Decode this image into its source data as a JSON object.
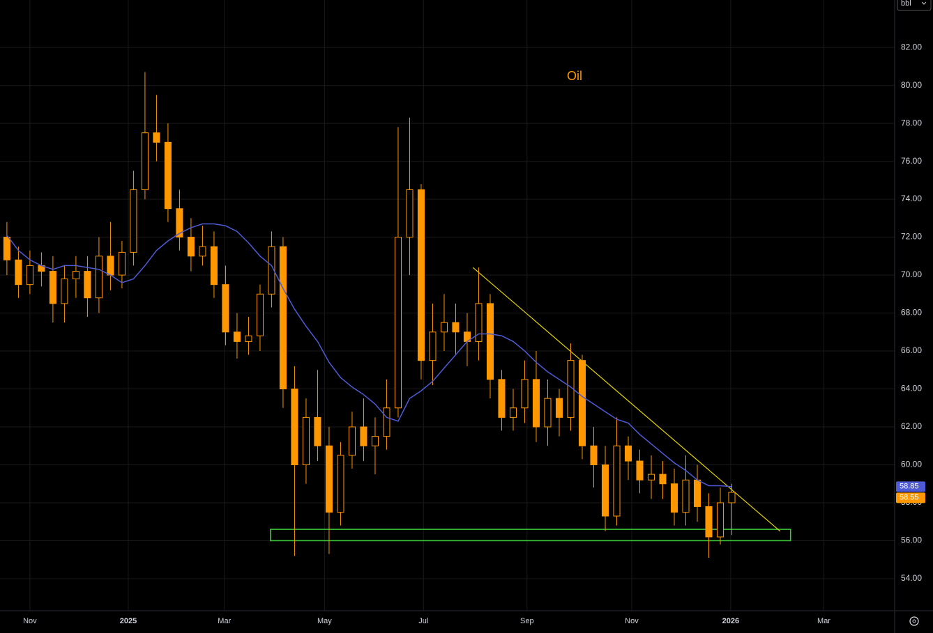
{
  "chart_data": {
    "type": "candlestick",
    "title": "Oil",
    "unit": "bbl",
    "x": [
      -2,
      -1,
      0,
      1,
      2,
      3,
      4,
      5,
      6,
      7,
      8,
      9,
      10,
      11,
      12,
      13,
      14,
      15,
      16,
      17,
      18,
      19,
      20,
      21,
      22,
      23,
      24,
      25,
      26,
      27,
      28,
      29,
      30,
      31,
      32,
      33,
      34,
      35,
      36,
      37,
      38,
      39,
      40,
      41,
      42,
      43,
      44,
      45,
      46,
      47,
      48,
      49,
      50,
      51,
      52,
      53,
      54,
      55,
      56,
      57,
      58,
      59,
      60,
      61
    ],
    "open": [
      72,
      70.8,
      69.5,
      70.5,
      70.2,
      68.5,
      69.8,
      70.2,
      68.8,
      71,
      70,
      71.2,
      74.5,
      77.5,
      77,
      73.5,
      72,
      71,
      71.5,
      69.5,
      67,
      66.5,
      66.8,
      69,
      71.5,
      64,
      60,
      62.5,
      61,
      57.5,
      60.5,
      62,
      61,
      61.5,
      63,
      72,
      74.5,
      65.5,
      67,
      67.5,
      67,
      66.5,
      68.5,
      64.5,
      62.5,
      63,
      64.5,
      62,
      63.5,
      62.5,
      65.5,
      61,
      60,
      57.3,
      61,
      60.2,
      59.2,
      59.5,
      59,
      57.5,
      59.2,
      57.8,
      56.2,
      58
    ],
    "high": [
      72.8,
      71.5,
      71.3,
      71.2,
      71,
      70.5,
      71,
      71,
      72,
      72.8,
      71.8,
      75.5,
      80.7,
      79.5,
      78,
      74.5,
      73,
      72.6,
      72.3,
      70.5,
      68,
      67.8,
      69.5,
      72.3,
      72,
      65.2,
      63.5,
      65,
      62,
      61.2,
      62.8,
      63.5,
      62.5,
      64.5,
      77.8,
      78.3,
      74.8,
      68.5,
      69,
      68.5,
      68,
      70.4,
      69,
      65,
      64,
      65.5,
      66,
      64.5,
      64,
      66.4,
      65.8,
      62,
      61,
      62.5,
      61.5,
      60.8,
      60.5,
      60.2,
      59.8,
      60.5,
      60,
      58.5,
      58.8,
      59
    ],
    "low": [
      70,
      68.8,
      69,
      69.4,
      67.5,
      67.5,
      68.8,
      67.8,
      68,
      69.2,
      69.3,
      70.5,
      74,
      76,
      72.8,
      71.3,
      70.2,
      70.5,
      68.8,
      66.3,
      65.6,
      65.8,
      66,
      68.3,
      63,
      55.2,
      59,
      60.2,
      55.3,
      56.8,
      59.8,
      60.2,
      59.5,
      60.8,
      62.5,
      70,
      64.5,
      64.2,
      66,
      65.8,
      65.2,
      65.5,
      63.5,
      61.8,
      61.8,
      62.2,
      61.2,
      61,
      61.5,
      61.8,
      60.3,
      58.8,
      56.5,
      56.8,
      59.2,
      58.5,
      58.2,
      58.2,
      56.8,
      56.8,
      57,
      55.1,
      55.8,
      56.3
    ],
    "close": [
      70.8,
      69.5,
      70.5,
      70.2,
      68.5,
      69.8,
      70.2,
      68.8,
      71,
      70,
      71.2,
      74.5,
      77.5,
      77,
      73.5,
      72,
      71,
      71.5,
      69.5,
      67,
      66.5,
      66.8,
      69,
      71.5,
      64,
      60,
      62.5,
      61,
      57.5,
      60.5,
      62,
      61,
      61.5,
      63,
      72,
      74.5,
      65.5,
      67,
      67.5,
      67,
      66.5,
      68.5,
      64.5,
      62.5,
      63,
      64.5,
      62,
      63.5,
      62.5,
      65.5,
      61,
      60,
      57.3,
      61,
      60.2,
      59.2,
      59.5,
      59,
      57.5,
      59.2,
      57.8,
      56.2,
      58,
      58.55
    ],
    "color": "#ff9800",
    "moving_average": {
      "color": "#4f5bd5",
      "values": [
        72.1,
        71.3,
        70.8,
        70.5,
        70.3,
        70.5,
        70.5,
        70.4,
        70.3,
        70,
        69.6,
        69.8,
        70.5,
        71.3,
        71.8,
        72.2,
        72.5,
        72.7,
        72.7,
        72.6,
        72.3,
        71.7,
        71,
        70.5,
        69.3,
        68.2,
        67.3,
        66.5,
        65.4,
        64.6,
        64.1,
        63.7,
        63.2,
        62.5,
        62.3,
        63.5,
        63.9,
        64.4,
        65.1,
        65.8,
        66.5,
        66.9,
        66.9,
        66.8,
        66.5,
        66,
        65.4,
        64.9,
        64.5,
        64.1,
        63.6,
        63.2,
        62.8,
        62.4,
        62.2,
        61.6,
        61.1,
        60.6,
        60.1,
        59.7,
        59.2,
        58.9,
        58.9,
        58.85
      ]
    },
    "price_tags": [
      {
        "value": 58.85,
        "label": "58.85",
        "color": "#4f5bd5"
      },
      {
        "value": 58.55,
        "label": "58.55",
        "color": "#ff9800"
      }
    ],
    "trendline": {
      "x": [
        38.5,
        65.2
      ],
      "y": [
        70.4,
        56.5
      ],
      "color": "#e6d400"
    },
    "support_zone": {
      "x": [
        20.9,
        66.1
      ],
      "y": [
        56,
        56.6
      ],
      "color": "#3ccf3c"
    },
    "xlim": [
      -2.6,
      75.15
    ],
    "xticks": [
      {
        "value": 0,
        "label": "Nov"
      },
      {
        "value": 8.55,
        "label": "2025"
      },
      {
        "value": 16.9,
        "label": "Mar"
      },
      {
        "value": 25.6,
        "label": "May"
      },
      {
        "value": 34.2,
        "label": "Jul"
      },
      {
        "value": 43.2,
        "label": "Sep"
      },
      {
        "value": 52.3,
        "label": "Nov"
      },
      {
        "value": 60.9,
        "label": "2026"
      },
      {
        "value": 69,
        "label": "Mar"
      }
    ],
    "ylim": [
      52.31,
      84.5
    ],
    "yticks": [
      {
        "value": 54,
        "label": "54.00"
      },
      {
        "value": 56,
        "label": "56.00"
      },
      {
        "value": 58,
        "label": "58.00"
      },
      {
        "value": 60,
        "label": "60.00"
      },
      {
        "value": 62,
        "label": "62.00"
      },
      {
        "value": 64,
        "label": "64.00"
      },
      {
        "value": 66,
        "label": "66.00"
      },
      {
        "value": 68,
        "label": "68.00"
      },
      {
        "value": 70,
        "label": "70.00"
      },
      {
        "value": 72,
        "label": "72.00"
      },
      {
        "value": 74,
        "label": "74.00"
      },
      {
        "value": 76,
        "label": "76.00"
      },
      {
        "value": 78,
        "label": "78.00"
      },
      {
        "value": 80,
        "label": "80.00"
      },
      {
        "value": 82,
        "label": "82.00"
      }
    ],
    "grid": true
  }
}
